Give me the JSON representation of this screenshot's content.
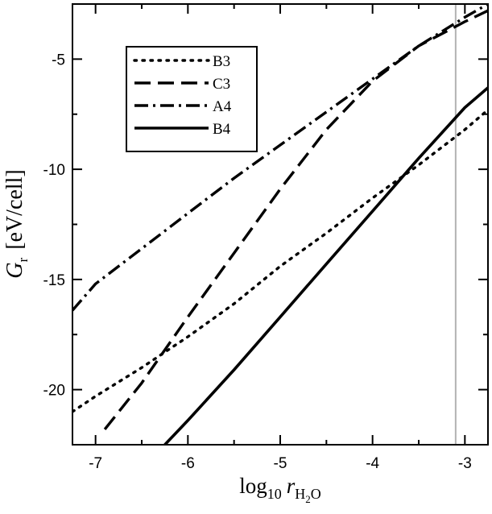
{
  "chart_data": {
    "type": "line",
    "xlabel": {
      "main": "log",
      "sub1": "10",
      "var": "r",
      "sub2": "H",
      "sub3": "2",
      "sub4": "O"
    },
    "ylabel": {
      "var": "G",
      "sub": "r",
      "unit": "[eV/cell]"
    },
    "xlim": [
      -7.25,
      -2.75
    ],
    "ylim": [
      -22.5,
      -2.5
    ],
    "xticks": [
      -7,
      -6,
      -5,
      -4,
      -3
    ],
    "yticks": [
      -20,
      -15,
      -10,
      -5
    ],
    "grid": false,
    "legend_position": "top-left",
    "vertical_marker": {
      "x": -3.1,
      "color": "#b3b3b3"
    },
    "series": [
      {
        "name": "B3",
        "style": "dotted",
        "x": [
          -7.25,
          -7.0,
          -6.5,
          -6.0,
          -5.5,
          -5.0,
          -4.5,
          -4.0,
          -3.5,
          -3.0,
          -2.75
        ],
        "y": [
          -21.0,
          -20.3,
          -19.0,
          -17.6,
          -16.1,
          -14.4,
          -12.9,
          -11.3,
          -9.8,
          -8.2,
          -7.3
        ]
      },
      {
        "name": "C3",
        "style": "dashed",
        "x": [
          -6.9,
          -6.5,
          -6.0,
          -5.5,
          -5.0,
          -4.5,
          -4.0,
          -3.5,
          -3.0,
          -2.75
        ],
        "y": [
          -21.8,
          -19.7,
          -16.7,
          -13.8,
          -10.9,
          -8.2,
          -6.0,
          -4.4,
          -3.3,
          -2.8
        ]
      },
      {
        "name": "A4",
        "style": "dash-dot",
        "x": [
          -7.25,
          -7.0,
          -6.5,
          -6.0,
          -5.5,
          -5.0,
          -4.5,
          -4.0,
          -3.5,
          -3.0,
          -2.75
        ],
        "y": [
          -16.4,
          -15.2,
          -13.6,
          -12.0,
          -10.4,
          -8.9,
          -7.4,
          -5.9,
          -4.4,
          -3.1,
          -2.5
        ]
      },
      {
        "name": "B4",
        "style": "solid",
        "x": [
          -6.25,
          -6.0,
          -5.5,
          -5.0,
          -4.5,
          -4.0,
          -3.5,
          -3.0,
          -2.75
        ],
        "y": [
          -22.5,
          -21.4,
          -19.1,
          -16.7,
          -14.3,
          -11.9,
          -9.5,
          -7.2,
          -6.3
        ]
      }
    ]
  }
}
